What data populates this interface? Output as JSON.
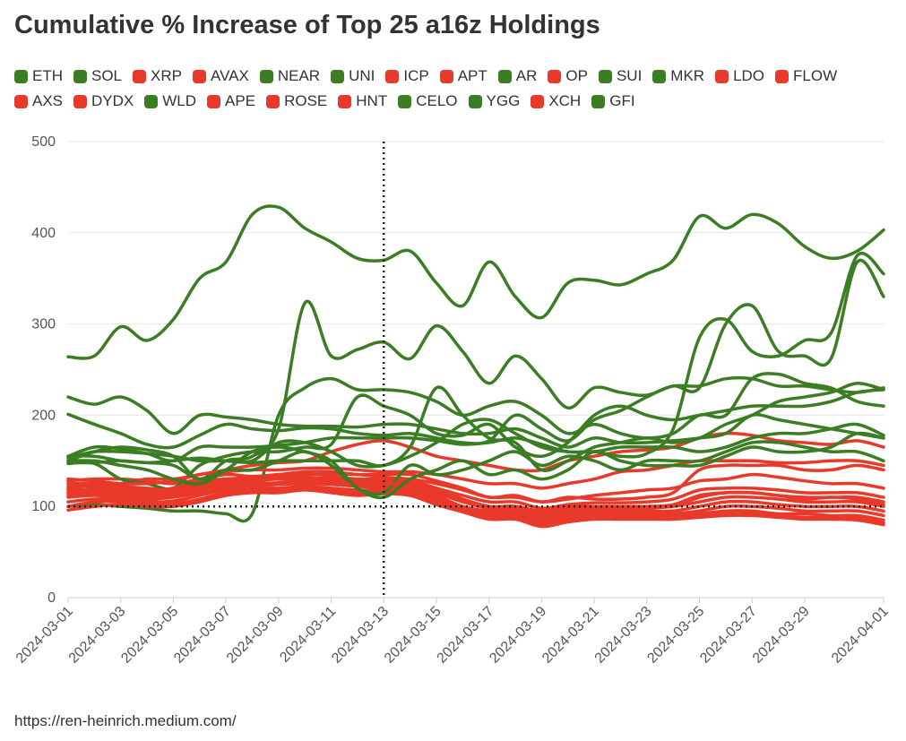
{
  "chart_data": {
    "type": "line",
    "title": "Cumulative % Increase of Top 25 a16z Holdings",
    "source": "https://ren-heinrich.medium.com/",
    "x": [
      "2024-03-01",
      "2024-03-02",
      "2024-03-03",
      "2024-03-04",
      "2024-03-05",
      "2024-03-06",
      "2024-03-07",
      "2024-03-08",
      "2024-03-09",
      "2024-03-10",
      "2024-03-11",
      "2024-03-12",
      "2024-03-13",
      "2024-03-14",
      "2024-03-15",
      "2024-03-16",
      "2024-03-17",
      "2024-03-18",
      "2024-03-19",
      "2024-03-20",
      "2024-03-21",
      "2024-03-22",
      "2024-03-23",
      "2024-03-24",
      "2024-03-25",
      "2024-03-26",
      "2024-03-27",
      "2024-03-28",
      "2024-03-29",
      "2024-03-30",
      "2024-03-31",
      "2024-04-01"
    ],
    "xticks": [
      "2024-03-01",
      "2024-03-03",
      "2024-03-05",
      "2024-03-07",
      "2024-03-09",
      "2024-03-11",
      "2024-03-13",
      "2024-03-15",
      "2024-03-17",
      "2024-03-19",
      "2024-03-21",
      "2024-03-23",
      "2024-03-25",
      "2024-03-27",
      "2024-03-29",
      "2024-04-01"
    ],
    "ylim": [
      0,
      500
    ],
    "yticks": [
      0,
      100,
      200,
      300,
      400,
      500
    ],
    "grid": true,
    "reference_x": "2024-03-13",
    "reference_y": 100,
    "series": [
      {
        "name": "ETH",
        "color": "#3a7d22",
        "values": [
          264,
          265,
          297,
          282,
          305,
          350,
          368,
          420,
          428,
          405,
          390,
          372,
          370,
          380,
          345,
          320,
          368,
          330,
          307,
          345,
          348,
          343,
          355,
          370,
          418,
          405,
          420,
          410,
          385,
          372,
          380,
          403
        ]
      },
      {
        "name": "SOL",
        "color": "#3a7d22",
        "values": [
          150,
          160,
          165,
          162,
          155,
          130,
          150,
          155,
          185,
          323,
          265,
          272,
          280,
          262,
          298,
          270,
          235,
          265,
          240,
          208,
          230,
          225,
          222,
          232,
          232,
          240,
          240,
          232,
          232,
          228,
          225,
          230
        ]
      },
      {
        "name": "XRP",
        "color": "#e8392a",
        "values": [
          115,
          120,
          125,
          130,
          130,
          135,
          140,
          145,
          148,
          150,
          160,
          168,
          172,
          165,
          155,
          150,
          145,
          140,
          140,
          150,
          155,
          160,
          162,
          165,
          175,
          180,
          178,
          172,
          170,
          168,
          172,
          165
        ]
      },
      {
        "name": "AVAX",
        "color": "#e8392a",
        "values": [
          128,
          130,
          130,
          128,
          125,
          130,
          135,
          133,
          135,
          138,
          138,
          135,
          135,
          135,
          128,
          120,
          110,
          112,
          105,
          110,
          108,
          108,
          110,
          115,
          140,
          145,
          145,
          145,
          140,
          140,
          145,
          140
        ]
      },
      {
        "name": "NEAR",
        "color": "#3a7d22",
        "values": [
          220,
          212,
          220,
          205,
          180,
          200,
          198,
          195,
          190,
          188,
          188,
          187,
          190,
          190,
          185,
          180,
          180,
          185,
          175,
          165,
          175,
          170,
          170,
          172,
          175,
          180,
          200,
          195,
          190,
          185,
          180,
          175
        ]
      },
      {
        "name": "UNI",
        "color": "#3a7d22",
        "values": [
          201,
          190,
          180,
          168,
          165,
          178,
          190,
          185,
          183,
          186,
          185,
          180,
          178,
          180,
          175,
          170,
          172,
          200,
          185,
          172,
          195,
          205,
          220,
          232,
          230,
          300,
          320,
          270,
          265,
          262,
          368,
          330
        ]
      },
      {
        "name": "ICP",
        "color": "#e8392a",
        "values": [
          125,
          125,
          122,
          120,
          118,
          125,
          128,
          130,
          132,
          132,
          130,
          130,
          128,
          128,
          120,
          108,
          100,
          100,
          95,
          100,
          100,
          100,
          100,
          100,
          110,
          115,
          115,
          112,
          110,
          110,
          110,
          105
        ]
      },
      {
        "name": "APT",
        "color": "#e8392a",
        "values": [
          120,
          118,
          118,
          115,
          115,
          120,
          125,
          128,
          130,
          130,
          128,
          128,
          125,
          125,
          115,
          105,
          98,
          98,
          90,
          95,
          98,
          98,
          98,
          100,
          105,
          110,
          110,
          108,
          105,
          105,
          105,
          100
        ]
      },
      {
        "name": "AR",
        "color": "#3a7d22",
        "values": [
          155,
          165,
          163,
          158,
          150,
          165,
          165,
          165,
          167,
          170,
          175,
          175,
          175,
          175,
          172,
          168,
          170,
          175,
          168,
          160,
          160,
          155,
          158,
          185,
          285,
          305,
          270,
          265,
          282,
          290,
          375,
          355
        ]
      },
      {
        "name": "OP",
        "color": "#e8392a",
        "values": [
          115,
          115,
          115,
          112,
          112,
          118,
          122,
          125,
          126,
          128,
          126,
          125,
          122,
          122,
          112,
          100,
          95,
          95,
          88,
          92,
          95,
          95,
          95,
          95,
          100,
          105,
          105,
          102,
          100,
          100,
          100,
          95
        ]
      },
      {
        "name": "SUI",
        "color": "#3a7d22",
        "values": [
          100,
          102,
          100,
          98,
          95,
          95,
          92,
          92,
          200,
          230,
          240,
          228,
          228,
          225,
          215,
          200,
          210,
          215,
          200,
          180,
          190,
          180,
          175,
          180,
          200,
          200,
          240,
          245,
          235,
          230,
          215,
          210
        ]
      },
      {
        "name": "MKR",
        "color": "#3a7d22",
        "values": [
          147,
          147,
          130,
          125,
          120,
          145,
          155,
          160,
          160,
          165,
          168,
          220,
          210,
          200,
          180,
          178,
          190,
          165,
          155,
          170,
          200,
          210,
          200,
          195,
          200,
          205,
          210,
          210,
          210,
          215,
          225,
          228
        ]
      },
      {
        "name": "LDO",
        "color": "#e8392a",
        "values": [
          110,
          112,
          110,
          108,
          110,
          115,
          120,
          122,
          124,
          125,
          124,
          122,
          120,
          120,
          110,
          98,
          92,
          92,
          85,
          90,
          92,
          92,
          92,
          92,
          95,
          100,
          100,
          98,
          95,
          95,
          95,
          90
        ]
      },
      {
        "name": "FLOW",
        "color": "#e8392a",
        "values": [
          105,
          108,
          108,
          105,
          106,
          112,
          118,
          120,
          120,
          122,
          120,
          118,
          118,
          118,
          108,
          96,
          90,
          90,
          82,
          88,
          90,
          90,
          90,
          90,
          92,
          95,
          95,
          92,
          92,
          90,
          90,
          85
        ]
      },
      {
        "name": "AXS",
        "color": "#e8392a",
        "values": [
          100,
          105,
          105,
          102,
          103,
          108,
          115,
          118,
          118,
          120,
          118,
          115,
          116,
          115,
          105,
          95,
          88,
          88,
          80,
          85,
          88,
          88,
          88,
          88,
          90,
          92,
          92,
          90,
          88,
          88,
          88,
          82
        ]
      },
      {
        "name": "DYDX",
        "color": "#e8392a",
        "values": [
          96,
          100,
          102,
          100,
          100,
          105,
          112,
          115,
          115,
          118,
          115,
          112,
          114,
          112,
          102,
          94,
          86,
          86,
          78,
          83,
          86,
          86,
          86,
          86,
          88,
          90,
          90,
          88,
          86,
          86,
          85,
          80
        ]
      },
      {
        "name": "WLD",
        "color": "#3a7d22",
        "values": [
          148,
          148,
          150,
          148,
          150,
          153,
          150,
          148,
          150,
          150,
          150,
          150,
          145,
          165,
          230,
          200,
          175,
          170,
          140,
          150,
          165,
          170,
          175,
          170,
          175,
          190,
          200,
          215,
          220,
          225,
          235,
          228
        ]
      },
      {
        "name": "APE",
        "color": "#e8392a",
        "values": [
          130,
          128,
          125,
          125,
          128,
          135,
          138,
          140,
          140,
          142,
          142,
          140,
          138,
          138,
          135,
          130,
          125,
          125,
          120,
          125,
          130,
          138,
          140,
          145,
          150,
          150,
          150,
          148,
          148,
          150,
          150,
          145
        ]
      },
      {
        "name": "ROSE",
        "color": "#e8392a",
        "values": [
          122,
          122,
          120,
          118,
          120,
          128,
          130,
          132,
          135,
          135,
          135,
          135,
          132,
          130,
          125,
          118,
          110,
          110,
          105,
          108,
          112,
          115,
          118,
          120,
          128,
          130,
          135,
          132,
          128,
          125,
          125,
          120
        ]
      },
      {
        "name": "HNT",
        "color": "#e8392a",
        "values": [
          118,
          118,
          118,
          116,
          116,
          122,
          126,
          128,
          130,
          130,
          132,
          130,
          130,
          128,
          120,
          112,
          105,
          105,
          98,
          102,
          104,
          104,
          105,
          108,
          118,
          120,
          120,
          118,
          115,
          115,
          115,
          110
        ]
      },
      {
        "name": "CELO",
        "color": "#3a7d22",
        "values": [
          153,
          160,
          160,
          158,
          155,
          150,
          150,
          150,
          170,
          170,
          160,
          145,
          145,
          155,
          170,
          190,
          195,
          180,
          165,
          160,
          160,
          165,
          165,
          165,
          160,
          165,
          175,
          180,
          180,
          185,
          190,
          178
        ]
      },
      {
        "name": "YGG",
        "color": "#3a7d22",
        "values": [
          155,
          155,
          150,
          148,
          145,
          130,
          140,
          140,
          150,
          160,
          145,
          120,
          115,
          145,
          135,
          140,
          150,
          160,
          145,
          155,
          150,
          140,
          150,
          150,
          150,
          160,
          170,
          170,
          165,
          160,
          160,
          150
        ]
      },
      {
        "name": "XCH",
        "color": "#e8392a",
        "values": [
          112,
          115,
          112,
          110,
          112,
          118,
          122,
          125,
          125,
          126,
          126,
          125,
          125,
          124,
          118,
          108,
          100,
          100,
          92,
          98,
          100,
          100,
          100,
          102,
          112,
          115,
          115,
          112,
          108,
          110,
          108,
          102
        ]
      },
      {
        "name": "GFI",
        "color": "#3a7d22",
        "values": [
          150,
          150,
          145,
          140,
          130,
          125,
          140,
          160,
          165,
          160,
          150,
          120,
          110,
          130,
          140,
          150,
          135,
          140,
          130,
          140,
          160,
          150,
          145,
          145,
          145,
          155,
          165,
          160,
          160,
          165,
          180,
          175
        ]
      }
    ]
  }
}
